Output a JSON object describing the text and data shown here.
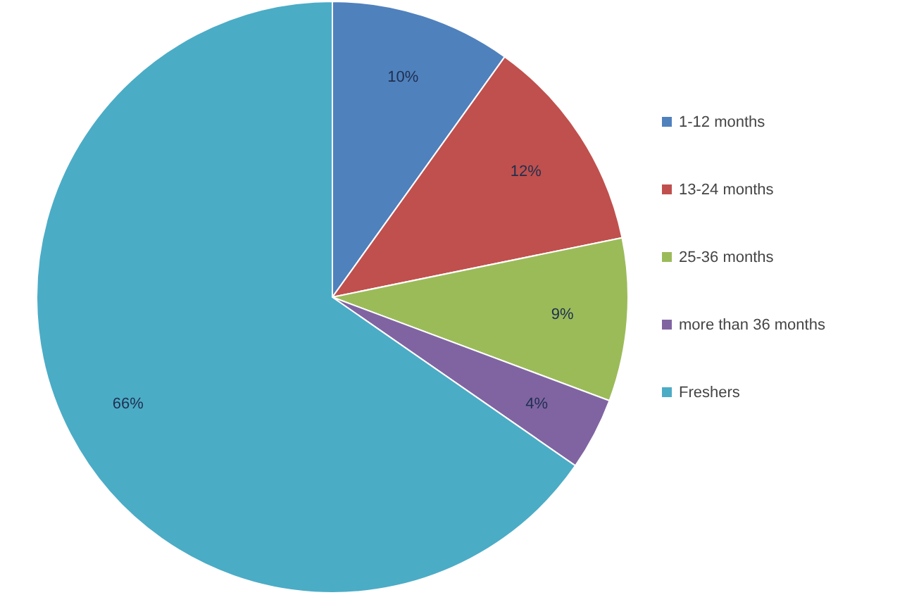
{
  "chart_data": {
    "type": "pie",
    "categories": [
      "1-12 months",
      "13-24 months",
      "25-36 months",
      "more than 36 months",
      "Freshers"
    ],
    "values": [
      10,
      12,
      9,
      4,
      66
    ],
    "colors": [
      "#4f81bd",
      "#c0504d",
      "#9bbb59",
      "#8064a2",
      "#4bacc6"
    ],
    "value_labels": [
      "10%",
      "12%",
      "9%",
      "4%",
      "66%"
    ],
    "legend": "right"
  }
}
